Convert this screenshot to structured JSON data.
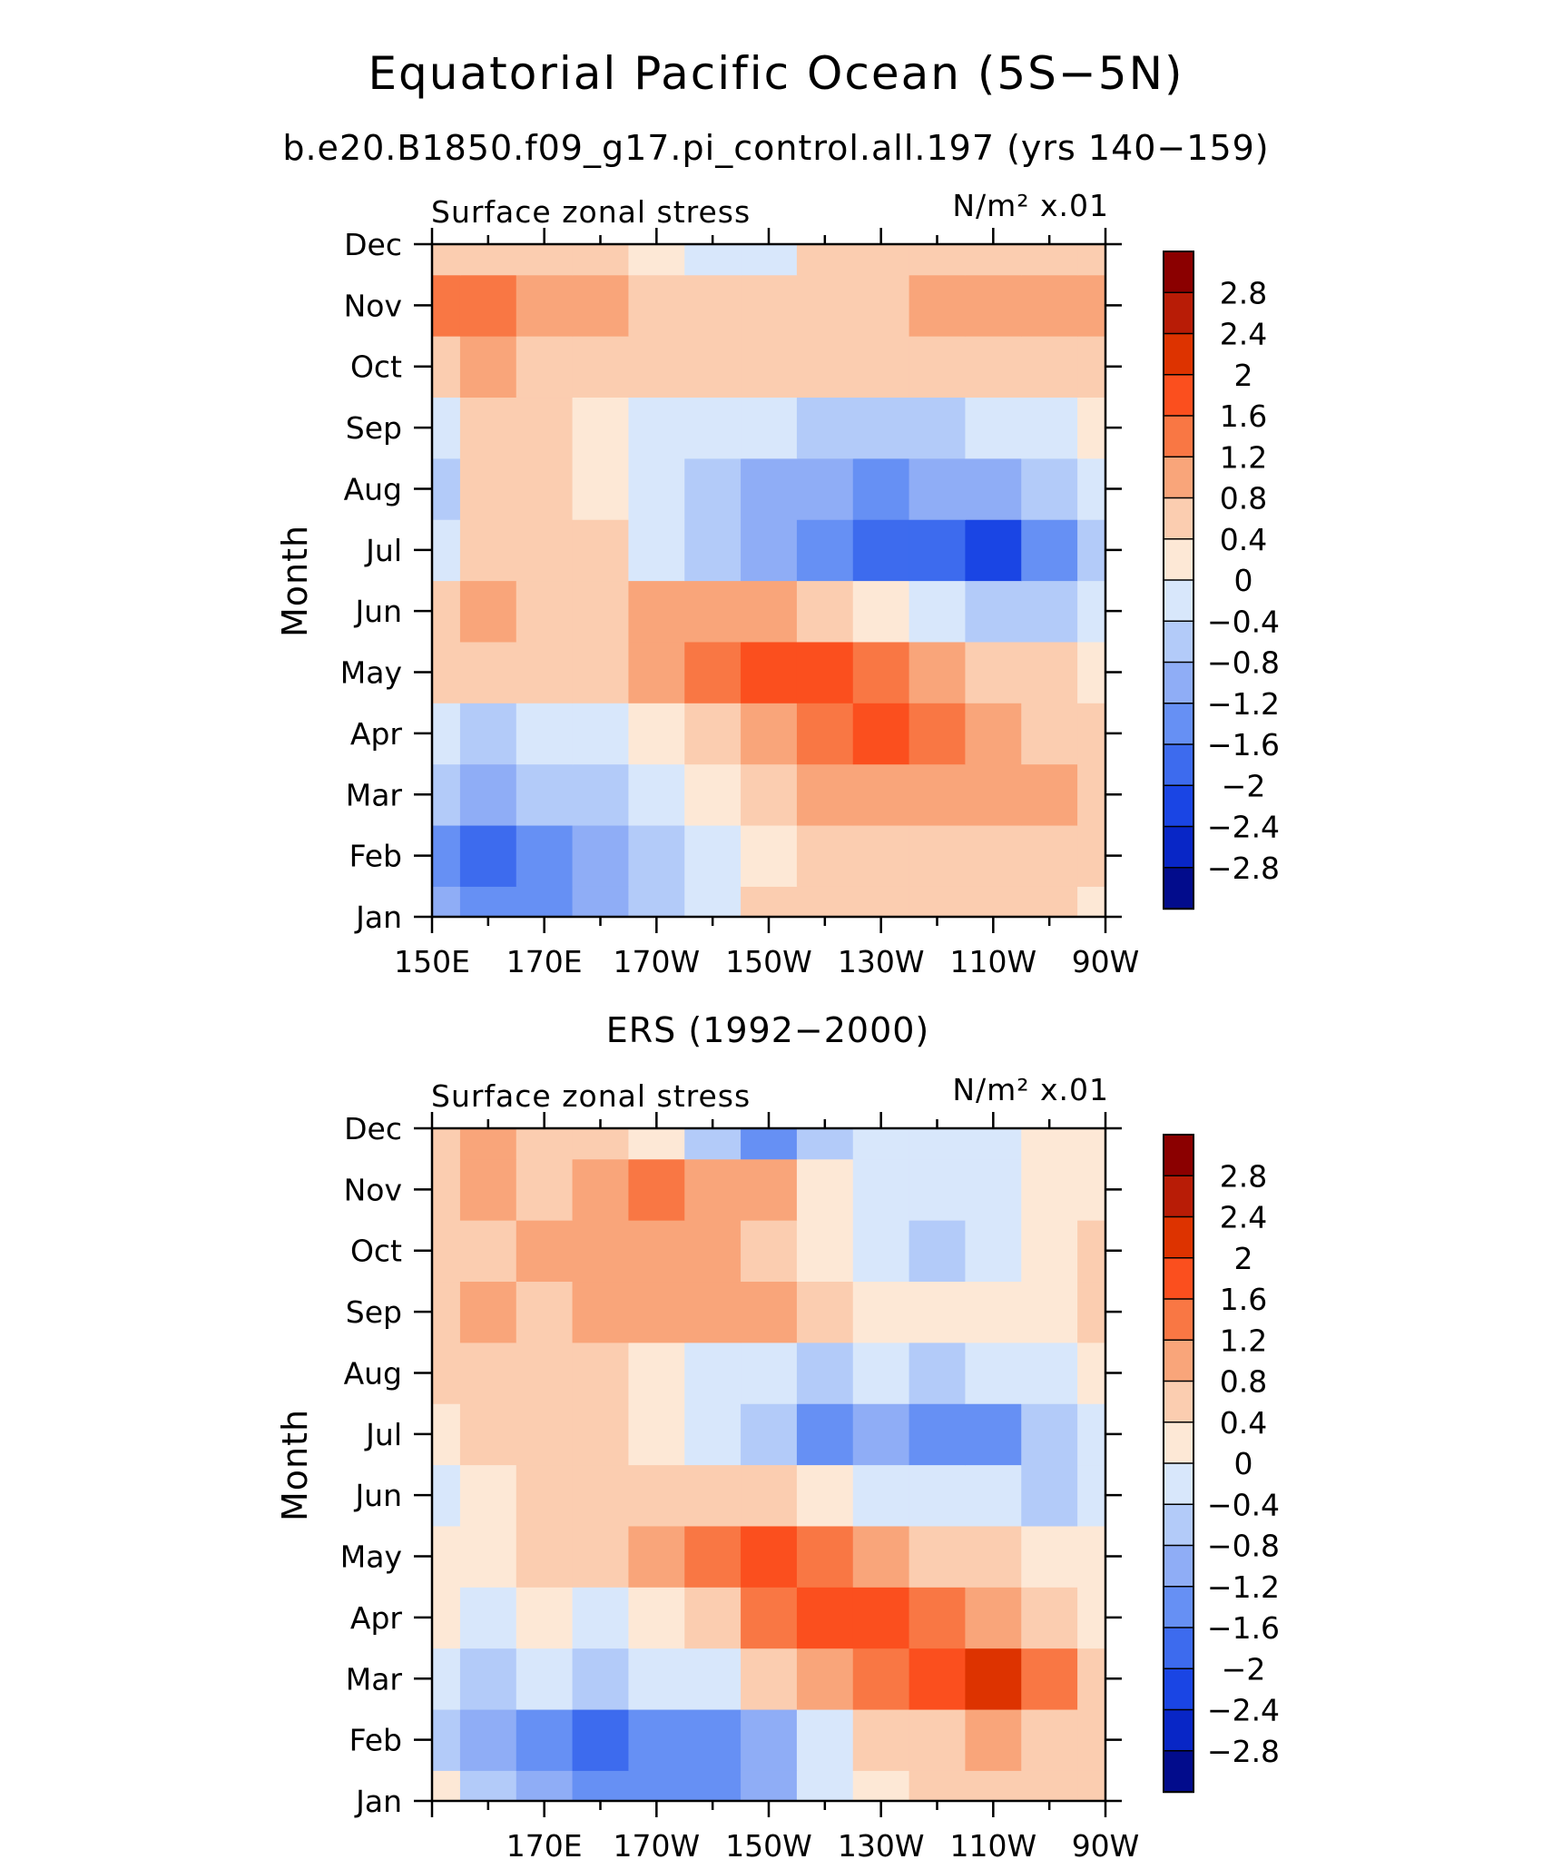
{
  "title": "Equatorial Pacific Ocean (5S−5N)",
  "subtitle": "b.e20.B1850.f09_g17.pi_control.all.197 (yrs 140−159)",
  "colorbar": {
    "levels": [
      "2.8",
      "2.4",
      "2",
      "1.6",
      "1.2",
      "0.8",
      "0.4",
      "0",
      "−0.4",
      "−0.8",
      "−1.2",
      "−1.6",
      "−2",
      "−2.4",
      "−2.8"
    ],
    "colors": [
      "#8b0000",
      "#b81c06",
      "#dd3300",
      "#fb4f1e",
      "#f97744",
      "#f9a57a",
      "#fbcdb0",
      "#fde8d6",
      "#d8e7fb",
      "#b3cbf9",
      "#8fadf6",
      "#6690f4",
      "#3d6bee",
      "#1a45e4",
      "#0826c6",
      "#020c8c"
    ]
  },
  "chart_data": [
    {
      "type": "heatmap",
      "title": "",
      "left_label": "Surface zonal stress",
      "right_label": "N/m² x.01",
      "ylabel": "Month",
      "x_tick_labels": [
        "150E",
        "170E",
        "170W",
        "150W",
        "130W",
        "110W",
        "90W"
      ],
      "y_tick_labels": [
        "Jan",
        "Feb",
        "Mar",
        "Apr",
        "May",
        "Jun",
        "Jul",
        "Aug",
        "Sep",
        "Oct",
        "Nov",
        "Dec"
      ],
      "x_longitudes_east": [
        150,
        160,
        170,
        180,
        190,
        200,
        210,
        220,
        230,
        240,
        250,
        260,
        270
      ],
      "values": [
        [
          -1.2,
          -1.6,
          -1.6,
          -1.2,
          -0.8,
          -0.4,
          0.4,
          0.4,
          0.4,
          0.4,
          0.4,
          0.4,
          0.0
        ],
        [
          -1.6,
          -2.0,
          -1.6,
          -1.2,
          -0.8,
          -0.4,
          0.0,
          0.4,
          0.4,
          0.4,
          0.4,
          0.4,
          0.4
        ],
        [
          -0.8,
          -1.2,
          -0.8,
          -0.8,
          -0.4,
          0.0,
          0.4,
          0.8,
          0.8,
          0.8,
          0.8,
          0.8,
          0.4
        ],
        [
          -0.4,
          -0.8,
          -0.4,
          -0.4,
          0.0,
          0.4,
          0.8,
          1.2,
          1.6,
          1.2,
          0.8,
          0.4,
          0.4
        ],
        [
          0.4,
          0.4,
          0.4,
          0.4,
          0.8,
          1.2,
          1.6,
          1.6,
          1.2,
          0.8,
          0.4,
          0.4,
          0.0
        ],
        [
          0.4,
          0.8,
          0.4,
          0.4,
          0.8,
          0.8,
          0.8,
          0.4,
          0.0,
          -0.4,
          -0.8,
          -0.8,
          -0.4
        ],
        [
          -0.4,
          0.4,
          0.4,
          0.4,
          -0.4,
          -0.8,
          -1.2,
          -1.6,
          -2.0,
          -2.0,
          -2.4,
          -1.6,
          -0.8
        ],
        [
          -0.8,
          0.4,
          0.4,
          0.0,
          -0.4,
          -0.8,
          -1.2,
          -1.2,
          -1.6,
          -1.2,
          -1.2,
          -0.8,
          -0.4
        ],
        [
          -0.4,
          0.4,
          0.4,
          0.0,
          -0.4,
          -0.4,
          -0.4,
          -0.8,
          -0.8,
          -0.8,
          -0.4,
          -0.4,
          0.0
        ],
        [
          0.4,
          0.8,
          0.4,
          0.4,
          0.4,
          0.4,
          0.4,
          0.4,
          0.4,
          0.4,
          0.4,
          0.4,
          0.4
        ],
        [
          1.2,
          1.2,
          0.8,
          0.8,
          0.4,
          0.4,
          0.4,
          0.4,
          0.4,
          0.8,
          0.8,
          0.8,
          0.8
        ],
        [
          0.4,
          0.4,
          0.4,
          0.4,
          0.0,
          -0.4,
          -0.4,
          0.4,
          0.4,
          0.4,
          0.4,
          0.4,
          0.4
        ]
      ]
    },
    {
      "type": "heatmap",
      "title": "ERS (1992−2000)",
      "left_label": "Surface zonal stress",
      "right_label": "N/m² x.01",
      "ylabel": "Month",
      "x_tick_labels": [
        "170E",
        "170W",
        "150W",
        "130W",
        "110W",
        "90W"
      ],
      "y_tick_labels": [
        "Jan",
        "Feb",
        "Mar",
        "Apr",
        "May",
        "Jun",
        "Jul",
        "Aug",
        "Sep",
        "Oct",
        "Nov",
        "Dec"
      ],
      "x_longitudes_east": [
        150,
        160,
        170,
        180,
        190,
        200,
        210,
        220,
        230,
        240,
        250,
        260,
        270
      ],
      "values": [
        [
          0.0,
          -0.8,
          -1.2,
          -1.6,
          -1.6,
          -1.6,
          -1.2,
          -0.4,
          0.0,
          0.4,
          0.4,
          0.4,
          0.4
        ],
        [
          -0.8,
          -1.2,
          -1.6,
          -2.0,
          -1.6,
          -1.6,
          -1.2,
          -0.4,
          0.4,
          0.4,
          0.8,
          0.4,
          0.4
        ],
        [
          -0.4,
          -0.8,
          -0.4,
          -0.8,
          -0.4,
          -0.4,
          0.4,
          0.8,
          1.2,
          1.6,
          2.0,
          1.2,
          0.4
        ],
        [
          0.0,
          -0.4,
          0.0,
          -0.4,
          0.0,
          0.4,
          1.2,
          1.6,
          1.6,
          1.2,
          0.8,
          0.4,
          0.0
        ],
        [
          0.0,
          0.0,
          0.4,
          0.4,
          0.8,
          1.2,
          1.6,
          1.2,
          0.8,
          0.4,
          0.4,
          0.0,
          0.0
        ],
        [
          -0.4,
          0.0,
          0.4,
          0.4,
          0.4,
          0.4,
          0.4,
          0.0,
          -0.4,
          -0.4,
          -0.4,
          -0.8,
          -0.4
        ],
        [
          0.0,
          0.4,
          0.4,
          0.4,
          0.0,
          -0.4,
          -0.8,
          -1.6,
          -1.2,
          -1.6,
          -1.6,
          -0.8,
          -0.4
        ],
        [
          0.4,
          0.4,
          0.4,
          0.4,
          0.0,
          -0.4,
          -0.4,
          -0.8,
          -0.4,
          -0.8,
          -0.4,
          -0.4,
          0.0
        ],
        [
          0.4,
          0.8,
          0.4,
          0.8,
          0.8,
          0.8,
          0.8,
          0.4,
          0.0,
          0.0,
          0.0,
          0.0,
          0.4
        ],
        [
          0.4,
          0.4,
          0.8,
          0.8,
          0.8,
          0.8,
          0.4,
          0.0,
          -0.4,
          -0.8,
          -0.4,
          0.0,
          0.4
        ],
        [
          0.4,
          0.8,
          0.4,
          0.8,
          1.2,
          0.8,
          0.8,
          0.0,
          -0.4,
          -0.4,
          -0.4,
          0.0,
          0.0
        ],
        [
          0.4,
          0.8,
          0.4,
          0.4,
          0.0,
          -0.8,
          -1.6,
          -0.8,
          -0.4,
          -0.4,
          -0.4,
          0.0,
          0.0
        ]
      ]
    }
  ]
}
